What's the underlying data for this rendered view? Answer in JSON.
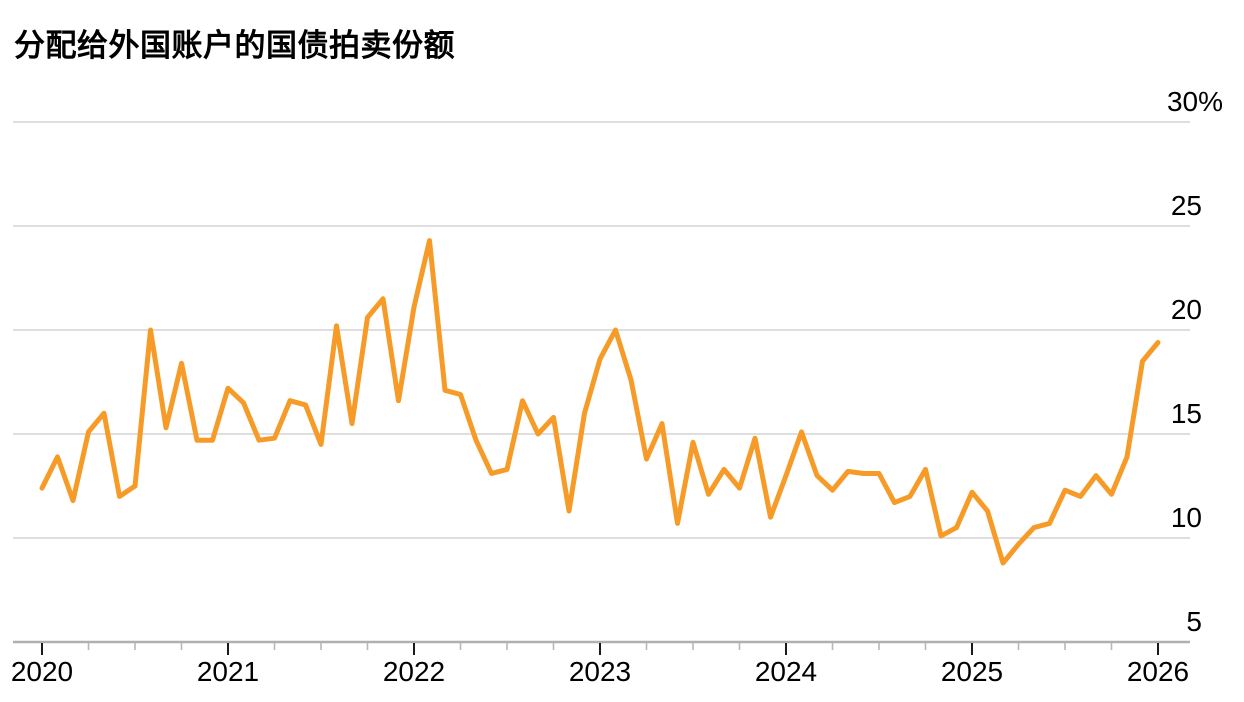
{
  "page": {
    "background": "#ffffff"
  },
  "chart_data": {
    "type": "line",
    "title": "分配给外国账户的国债拍卖份额",
    "x_start": "2020-01",
    "x_end": "2026-01",
    "frequency": "monthly",
    "x_tick_labels": [
      "2020",
      "2021",
      "2022",
      "2023",
      "2024",
      "2025",
      "2026"
    ],
    "x_minor_ticks_per_year": 3,
    "y_tick_labels": [
      "30%",
      "25",
      "20",
      "15",
      "10",
      "5"
    ],
    "y_ticks": [
      30,
      25,
      20,
      15,
      10,
      5
    ],
    "ylim": [
      5,
      30
    ],
    "y_unit": "%",
    "grid": true,
    "y_axis_side": "right",
    "legend": "none",
    "line_color": "#F79B28",
    "gridline_color": "#d4d4d4",
    "axis_line_color": "#b0b0b0",
    "major_tick_color": "#1a1a1a",
    "minor_tick_color": "#b8b8b8",
    "text_color": "#000000",
    "values": [
      12.4,
      13.9,
      11.8,
      15.1,
      16.0,
      12.0,
      12.5,
      20.0,
      15.3,
      18.4,
      14.7,
      14.7,
      17.2,
      16.5,
      14.7,
      14.8,
      16.6,
      16.4,
      14.5,
      20.2,
      15.5,
      20.6,
      21.5,
      16.6,
      21.1,
      24.3,
      17.1,
      16.9,
      14.7,
      13.1,
      13.3,
      16.6,
      15.0,
      15.8,
      11.3,
      16.0,
      18.6,
      20.0,
      17.6,
      13.8,
      15.5,
      10.7,
      14.6,
      12.1,
      13.3,
      12.4,
      14.8,
      11.0,
      13.0,
      15.1,
      13.0,
      12.3,
      13.2,
      13.1,
      13.1,
      11.7,
      12.0,
      13.3,
      10.1,
      10.5,
      12.2,
      11.3,
      8.8,
      9.7,
      10.5,
      10.7,
      12.3,
      12.0,
      13.0,
      12.1,
      13.9,
      18.5,
      19.4
    ]
  }
}
